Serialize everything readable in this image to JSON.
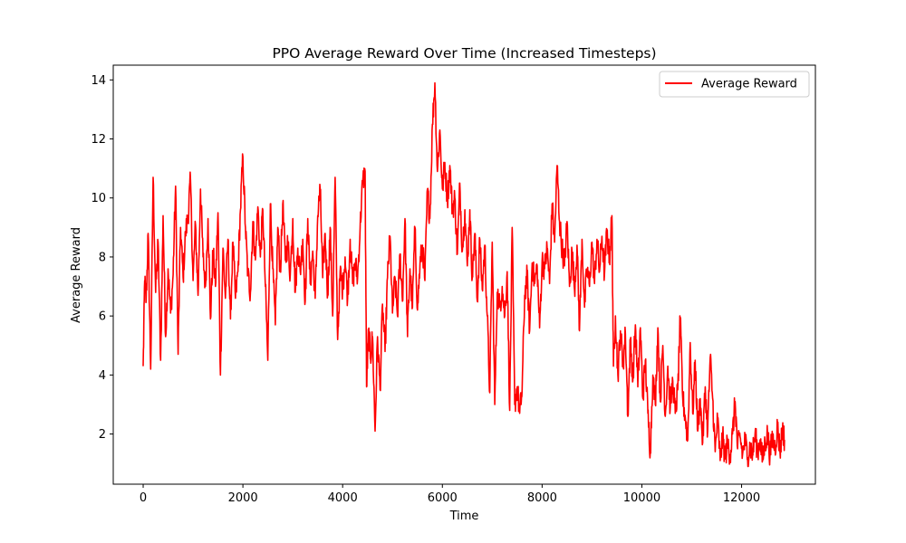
{
  "chart_data": {
    "type": "line",
    "title": "PPO Average Reward Over Time (Increased Timesteps)",
    "xlabel": "Time",
    "ylabel": "Average Reward",
    "xlim": [
      -600,
      13480
    ],
    "ylim": [
      0.3,
      14.5
    ],
    "xticks": [
      0,
      2000,
      4000,
      6000,
      8000,
      10000,
      12000
    ],
    "yticks": [
      2,
      4,
      6,
      8,
      10,
      12,
      14
    ],
    "grid": false,
    "legend_position": "top-right",
    "series": [
      {
        "name": "Average Reward",
        "color": "#ff0000",
        "anchors": [
          [
            0,
            4.3
          ],
          [
            30,
            7.2
          ],
          [
            60,
            6.5
          ],
          [
            100,
            8.8
          ],
          [
            150,
            4.2
          ],
          [
            200,
            10.7
          ],
          [
            250,
            6.8
          ],
          [
            300,
            8.5
          ],
          [
            350,
            4.5
          ],
          [
            400,
            9.4
          ],
          [
            450,
            5.3
          ],
          [
            500,
            7.6
          ],
          [
            550,
            6.1
          ],
          [
            600,
            7.4
          ],
          [
            650,
            10.4
          ],
          [
            700,
            4.7
          ],
          [
            750,
            9.0
          ],
          [
            800,
            7.3
          ],
          [
            850,
            8.8
          ],
          [
            900,
            9.4
          ],
          [
            950,
            10.6
          ],
          [
            1000,
            7.2
          ],
          [
            1050,
            9.1
          ],
          [
            1100,
            6.7
          ],
          [
            1150,
            10.3
          ],
          [
            1200,
            8.0
          ],
          [
            1250,
            7.0
          ],
          [
            1300,
            9.3
          ],
          [
            1350,
            5.9
          ],
          [
            1400,
            8.2
          ],
          [
            1450,
            7.0
          ],
          [
            1500,
            9.5
          ],
          [
            1550,
            4.0
          ],
          [
            1600,
            8.3
          ],
          [
            1650,
            6.6
          ],
          [
            1700,
            8.6
          ],
          [
            1750,
            5.9
          ],
          [
            1800,
            8.5
          ],
          [
            1850,
            6.6
          ],
          [
            1900,
            7.5
          ],
          [
            1950,
            9.6
          ],
          [
            2000,
            11.4
          ],
          [
            2050,
            9.0
          ],
          [
            2100,
            7.4
          ],
          [
            2150,
            6.8
          ],
          [
            2200,
            9.2
          ],
          [
            2250,
            7.9
          ],
          [
            2300,
            9.7
          ],
          [
            2350,
            8.0
          ],
          [
            2400,
            9.6
          ],
          [
            2450,
            7.0
          ],
          [
            2500,
            4.5
          ],
          [
            2550,
            9.8
          ],
          [
            2600,
            7.6
          ],
          [
            2650,
            5.7
          ],
          [
            2700,
            9.0
          ],
          [
            2750,
            7.5
          ],
          [
            2800,
            9.8
          ],
          [
            2850,
            7.9
          ],
          [
            2900,
            8.5
          ],
          [
            2950,
            7.4
          ],
          [
            3000,
            9.3
          ],
          [
            3050,
            6.8
          ],
          [
            3100,
            8.3
          ],
          [
            3150,
            7.5
          ],
          [
            3200,
            8.6
          ],
          [
            3250,
            6.5
          ],
          [
            3300,
            9.3
          ],
          [
            3350,
            7.1
          ],
          [
            3400,
            8.2
          ],
          [
            3450,
            6.6
          ],
          [
            3500,
            9.4
          ],
          [
            3550,
            10.3
          ],
          [
            3600,
            7.3
          ],
          [
            3650,
            8.8
          ],
          [
            3700,
            6.7
          ],
          [
            3750,
            9.0
          ],
          [
            3800,
            6.0
          ],
          [
            3850,
            10.7
          ],
          [
            3900,
            5.2
          ],
          [
            3950,
            7.5
          ],
          [
            4000,
            6.9
          ],
          [
            4050,
            8.0
          ],
          [
            4100,
            6.6
          ],
          [
            4150,
            8.6
          ],
          [
            4200,
            7.1
          ],
          [
            4250,
            7.8
          ],
          [
            4300,
            7.3
          ],
          [
            4350,
            9.0
          ],
          [
            4400,
            10.5
          ],
          [
            4450,
            10.9
          ],
          [
            4480,
            3.6
          ],
          [
            4520,
            5.5
          ],
          [
            4560,
            4.6
          ],
          [
            4600,
            5.3
          ],
          [
            4650,
            2.1
          ],
          [
            4700,
            5.3
          ],
          [
            4750,
            3.5
          ],
          [
            4800,
            6.4
          ],
          [
            4850,
            4.8
          ],
          [
            4900,
            7.3
          ],
          [
            4950,
            8.7
          ],
          [
            5000,
            6.1
          ],
          [
            5050,
            7.3
          ],
          [
            5100,
            6.0
          ],
          [
            5150,
            8.1
          ],
          [
            5200,
            6.5
          ],
          [
            5250,
            9.3
          ],
          [
            5300,
            5.3
          ],
          [
            5350,
            7.6
          ],
          [
            5400,
            6.3
          ],
          [
            5450,
            9.0
          ],
          [
            5500,
            6.2
          ],
          [
            5550,
            7.7
          ],
          [
            5600,
            8.4
          ],
          [
            5650,
            7.2
          ],
          [
            5700,
            10.3
          ],
          [
            5750,
            9.3
          ],
          [
            5800,
            12.5
          ],
          [
            5850,
            13.9
          ],
          [
            5900,
            10.9
          ],
          [
            5950,
            12.3
          ],
          [
            6000,
            10.3
          ],
          [
            6050,
            11.2
          ],
          [
            6100,
            9.9
          ],
          [
            6150,
            11.1
          ],
          [
            6200,
            9.6
          ],
          [
            6250,
            10.0
          ],
          [
            6300,
            8.1
          ],
          [
            6350,
            10.5
          ],
          [
            6400,
            8.2
          ],
          [
            6450,
            9.6
          ],
          [
            6500,
            7.7
          ],
          [
            6550,
            9.6
          ],
          [
            6600,
            7.3
          ],
          [
            6650,
            8.8
          ],
          [
            6700,
            6.5
          ],
          [
            6750,
            8.6
          ],
          [
            6800,
            6.9
          ],
          [
            6850,
            8.4
          ],
          [
            6900,
            6.0
          ],
          [
            6950,
            3.4
          ],
          [
            7000,
            8.5
          ],
          [
            7050,
            3.0
          ],
          [
            7100,
            6.8
          ],
          [
            7150,
            6.3
          ],
          [
            7200,
            7.0
          ],
          [
            7250,
            6.0
          ],
          [
            7300,
            7.5
          ],
          [
            7350,
            2.8
          ],
          [
            7400,
            9.0
          ],
          [
            7450,
            3.0
          ],
          [
            7500,
            3.6
          ],
          [
            7550,
            2.7
          ],
          [
            7600,
            3.5
          ],
          [
            7650,
            6.7
          ],
          [
            7700,
            7.4
          ],
          [
            7750,
            5.5
          ],
          [
            7800,
            7.8
          ],
          [
            7850,
            7.1
          ],
          [
            7900,
            7.7
          ],
          [
            7950,
            5.6
          ],
          [
            8000,
            7.9
          ],
          [
            8050,
            7.6
          ],
          [
            8100,
            8.3
          ],
          [
            8150,
            7.1
          ],
          [
            8200,
            9.8
          ],
          [
            8250,
            8.5
          ],
          [
            8300,
            11.1
          ],
          [
            8350,
            9.2
          ],
          [
            8400,
            8.3
          ],
          [
            8450,
            7.7
          ],
          [
            8500,
            9.2
          ],
          [
            8550,
            7.0
          ],
          [
            8600,
            8.2
          ],
          [
            8650,
            6.9
          ],
          [
            8700,
            8.4
          ],
          [
            8750,
            5.5
          ],
          [
            8800,
            8.6
          ],
          [
            8850,
            6.3
          ],
          [
            8900,
            7.6
          ],
          [
            8950,
            7.0
          ],
          [
            9000,
            8.5
          ],
          [
            9050,
            7.1
          ],
          [
            9100,
            8.6
          ],
          [
            9150,
            7.5
          ],
          [
            9200,
            8.7
          ],
          [
            9250,
            7.4
          ],
          [
            9300,
            8.9
          ],
          [
            9350,
            7.9
          ],
          [
            9400,
            9.4
          ],
          [
            9430,
            4.3
          ],
          [
            9470,
            6.0
          ],
          [
            9520,
            4.0
          ],
          [
            9570,
            5.5
          ],
          [
            9620,
            4.3
          ],
          [
            9670,
            5.4
          ],
          [
            9720,
            2.6
          ],
          [
            9770,
            5.2
          ],
          [
            9820,
            3.8
          ],
          [
            9870,
            5.7
          ],
          [
            9920,
            3.6
          ],
          [
            9970,
            5.6
          ],
          [
            10020,
            3.2
          ],
          [
            10070,
            4.5
          ],
          [
            10120,
            2.7
          ],
          [
            10170,
            1.4
          ],
          [
            10220,
            4.0
          ],
          [
            10270,
            3.0
          ],
          [
            10320,
            5.6
          ],
          [
            10370,
            3.1
          ],
          [
            10420,
            5.0
          ],
          [
            10470,
            2.6
          ],
          [
            10520,
            4.3
          ],
          [
            10570,
            2.9
          ],
          [
            10620,
            3.8
          ],
          [
            10670,
            2.7
          ],
          [
            10720,
            3.5
          ],
          [
            10770,
            5.9
          ],
          [
            10820,
            3.2
          ],
          [
            10870,
            2.6
          ],
          [
            10920,
            1.8
          ],
          [
            10970,
            5.1
          ],
          [
            11020,
            2.7
          ],
          [
            11070,
            4.5
          ],
          [
            11120,
            2.1
          ],
          [
            11170,
            3.2
          ],
          [
            11220,
            1.7
          ],
          [
            11270,
            3.6
          ],
          [
            11320,
            2.1
          ],
          [
            11370,
            4.6
          ],
          [
            11420,
            3.2
          ],
          [
            11470,
            1.4
          ],
          [
            11520,
            2.5
          ],
          [
            11570,
            1.1
          ],
          [
            11620,
            1.9
          ],
          [
            11670,
            1.2
          ],
          [
            11720,
            1.7
          ],
          [
            11770,
            1.3
          ],
          [
            11820,
            2.0
          ],
          [
            11870,
            3.1
          ],
          [
            11920,
            1.5
          ],
          [
            11970,
            1.9
          ],
          [
            12020,
            1.3
          ],
          [
            12070,
            1.8
          ],
          [
            12120,
            1.2
          ],
          [
            12170,
            1.6
          ],
          [
            12220,
            1.3
          ],
          [
            12270,
            2.0
          ],
          [
            12320,
            1.4
          ],
          [
            12370,
            1.8
          ],
          [
            12420,
            1.1
          ],
          [
            12470,
            1.7
          ],
          [
            12520,
            2.0
          ],
          [
            12570,
            1.3
          ],
          [
            12620,
            1.9
          ],
          [
            12670,
            1.5
          ],
          [
            12720,
            2.3
          ],
          [
            12770,
            1.4
          ],
          [
            12820,
            2.2
          ],
          [
            12860,
            1.8
          ]
        ]
      }
    ]
  }
}
